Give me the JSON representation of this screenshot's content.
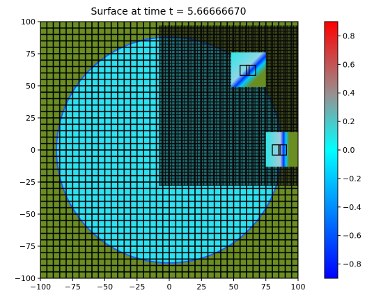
{
  "chart_data": {
    "type": "heatmap",
    "title": "Surface at time t =     5.66666670",
    "xlabel": "",
    "ylabel": "",
    "xlim": [
      -100,
      100
    ],
    "ylim": [
      -100,
      100
    ],
    "xticks": [
      "−100",
      "−75",
      "−50",
      "−25",
      "0",
      "25",
      "50",
      "75",
      "100"
    ],
    "yticks": [
      "100",
      "75",
      "50",
      "25",
      "0",
      "−25",
      "−50",
      "−75",
      "−100"
    ],
    "xtick_values": [
      -100,
      -75,
      -50,
      -25,
      0,
      25,
      50,
      75,
      100
    ],
    "ytick_values": [
      100,
      75,
      50,
      25,
      0,
      -25,
      -50,
      -75,
      -100
    ],
    "colorbar": {
      "min": -0.9,
      "max": 0.9,
      "ticks": [
        "0.8",
        "0.6",
        "0.4",
        "0.2",
        "0.0",
        "−0.2",
        "−0.4",
        "−0.6",
        "−0.8"
      ],
      "tick_values": [
        0.8,
        0.6,
        0.4,
        0.2,
        0.0,
        -0.2,
        -0.4,
        -0.6,
        -0.8
      ],
      "colors": [
        "#0000ff",
        "#00ffff",
        "#ff0000"
      ]
    },
    "surface": {
      "wet_region": {
        "shape": "circle",
        "center": [
          0,
          0
        ],
        "radius": 87,
        "value": 0.0
      },
      "dry_region_color": "#6b8e23",
      "coarse_grid_spacing": 5,
      "fine_grid_region": {
        "x": [
          -8,
          100
        ],
        "y": [
          -28,
          97
        ]
      },
      "refinement_patches": [
        {
          "x": [
            48,
            75
          ],
          "y": [
            49,
            76
          ],
          "boxes": [
            {
              "x": [
                55,
                62
              ],
              "y": [
                58,
                66
              ]
            },
            {
              "x": [
                60,
                67
              ],
              "y": [
                58,
                66
              ]
            }
          ]
        },
        {
          "x": [
            75,
            100
          ],
          "y": [
            -13,
            14
          ],
          "boxes": [
            {
              "x": [
                80,
                86
              ],
              "y": [
                -4,
                4
              ]
            },
            {
              "x": [
                85,
                91
              ],
              "y": [
                -4,
                4
              ]
            }
          ]
        }
      ]
    }
  }
}
